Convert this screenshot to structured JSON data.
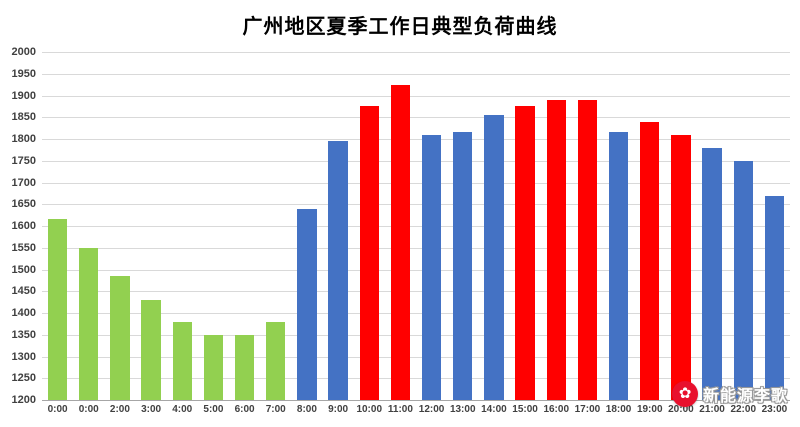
{
  "chart_data": {
    "type": "bar",
    "title": "广州地区夏季工作日典型负荷曲线",
    "xlabel": "",
    "ylabel": "",
    "categories": [
      "0:00",
      "0:00",
      "2:00",
      "3:00",
      "4:00",
      "5:00",
      "6:00",
      "7:00",
      "8:00",
      "9:00",
      "10:00",
      "11:00",
      "12:00",
      "13:00",
      "14:00",
      "15:00",
      "16:00",
      "17:00",
      "18:00",
      "19:00",
      "20:00",
      "21:00",
      "22:00",
      "23:00"
    ],
    "values": [
      1615,
      1550,
      1485,
      1430,
      1380,
      1350,
      1350,
      1380,
      1640,
      1795,
      1875,
      1925,
      1810,
      1815,
      1855,
      1875,
      1890,
      1890,
      1815,
      1840,
      1810,
      1780,
      1750,
      1670
    ],
    "bar_colors": [
      "#92D050",
      "#92D050",
      "#92D050",
      "#92D050",
      "#92D050",
      "#92D050",
      "#92D050",
      "#92D050",
      "#4472C4",
      "#4472C4",
      "#FF0000",
      "#FF0000",
      "#4472C4",
      "#4472C4",
      "#4472C4",
      "#FF0000",
      "#FF0000",
      "#FF0000",
      "#4472C4",
      "#FF0000",
      "#FF0000",
      "#4472C4",
      "#4472C4",
      "#4472C4"
    ],
    "ylim": [
      1200,
      2000
    ],
    "ytick_step": 50,
    "grid": true,
    "legend": "none",
    "palette": {
      "green": "#92D050",
      "blue": "#4472C4",
      "red": "#FF0000"
    }
  },
  "watermark": {
    "text": "新能源李歌",
    "logo_icon": "flower-icon",
    "logo_color": "#E8112D"
  }
}
